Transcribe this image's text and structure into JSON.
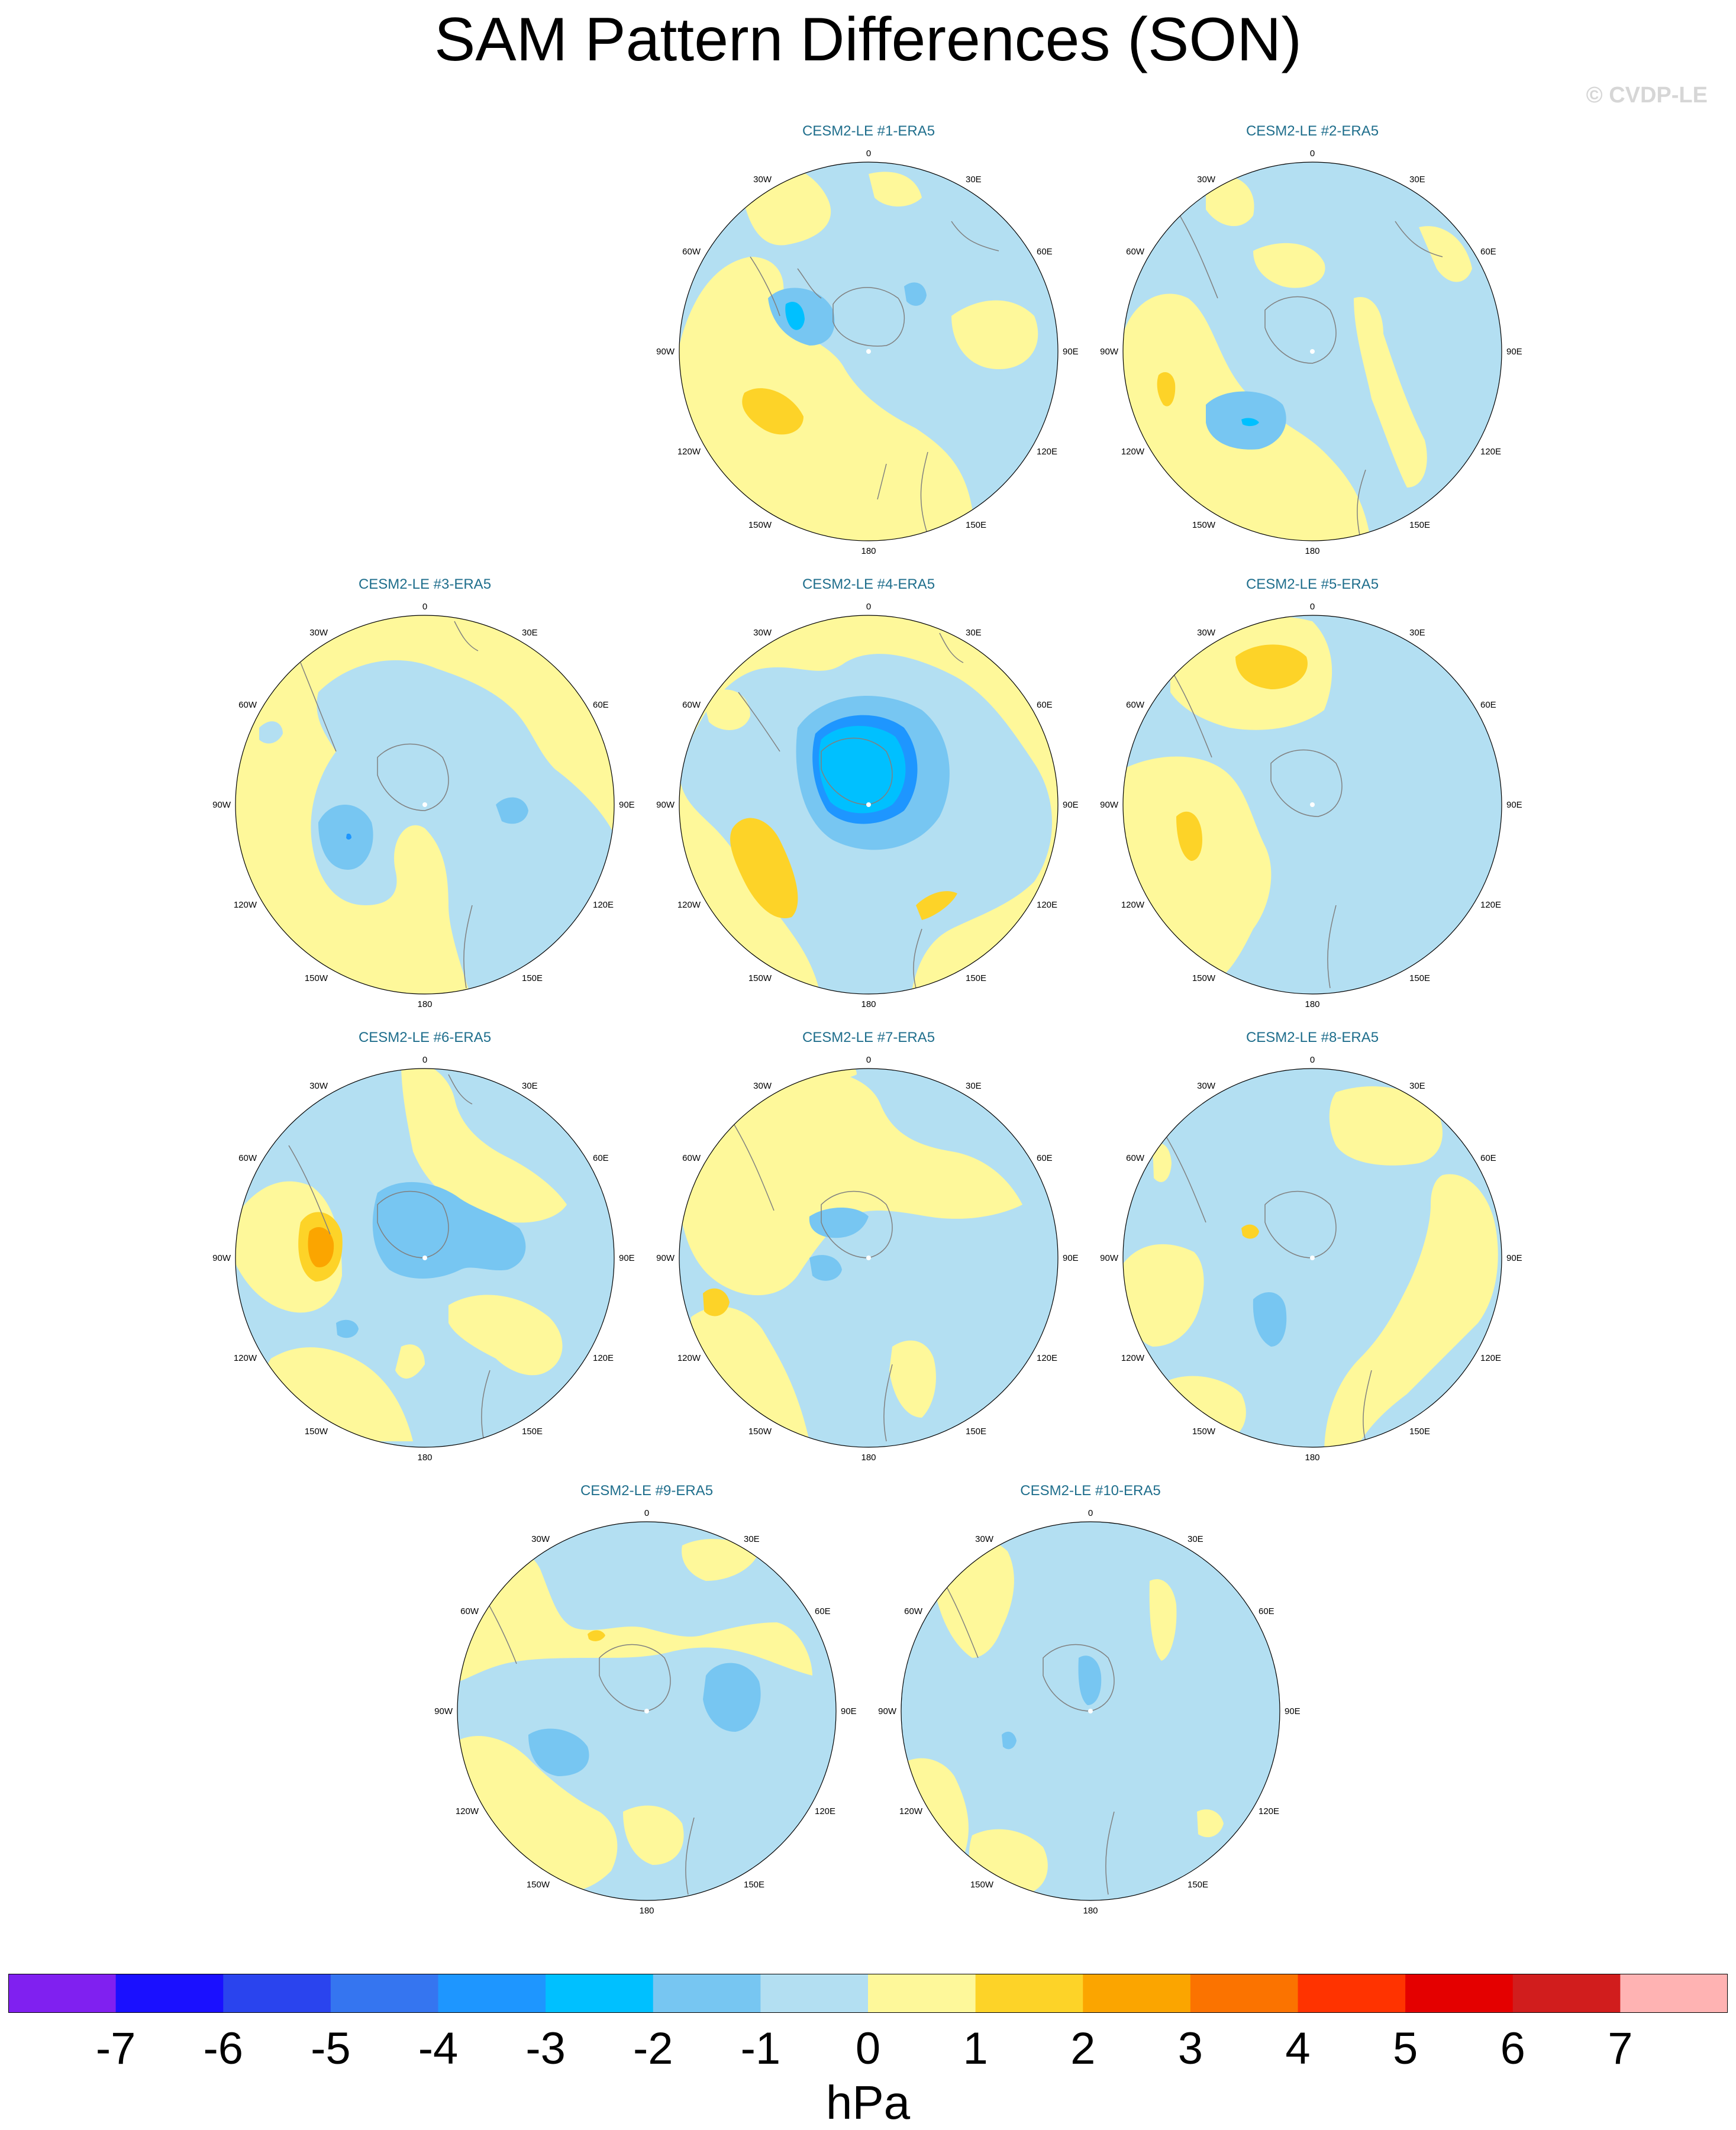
{
  "title": "SAM Pattern Differences (SON)",
  "credit": "© CVDP-LE",
  "units": "hPa",
  "longitude_labels": [
    "0",
    "30E",
    "60E",
    "90E",
    "120E",
    "150E",
    "180",
    "150W",
    "120W",
    "90W",
    "60W",
    "30W"
  ],
  "colorbar": {
    "colors": [
      "#8020f0",
      "#1a10ff",
      "#2a44ee",
      "#3575f0",
      "#1e96ff",
      "#00c0ff",
      "#77c6f2",
      "#b3dff2",
      "#fef89a",
      "#fdd328",
      "#fba500",
      "#fb7300",
      "#ff3300",
      "#e40000",
      "#d11d1d",
      "#ffb3b3"
    ],
    "tick_labels": [
      "-7",
      "-6",
      "-5",
      "-4",
      "-3",
      "-2",
      "-1",
      "0",
      "1",
      "2",
      "3",
      "4",
      "5",
      "6",
      "7"
    ]
  },
  "panels": [
    {
      "title": "CESM2-LE #1-ERA5"
    },
    {
      "title": "CESM2-LE #2-ERA5"
    },
    {
      "title": "CESM2-LE #3-ERA5"
    },
    {
      "title": "CESM2-LE #4-ERA5"
    },
    {
      "title": "CESM2-LE #5-ERA5"
    },
    {
      "title": "CESM2-LE #6-ERA5"
    },
    {
      "title": "CESM2-LE #7-ERA5"
    },
    {
      "title": "CESM2-LE #8-ERA5"
    },
    {
      "title": "CESM2-LE #9-ERA5"
    },
    {
      "title": "CESM2-LE #10-ERA5"
    }
  ]
}
